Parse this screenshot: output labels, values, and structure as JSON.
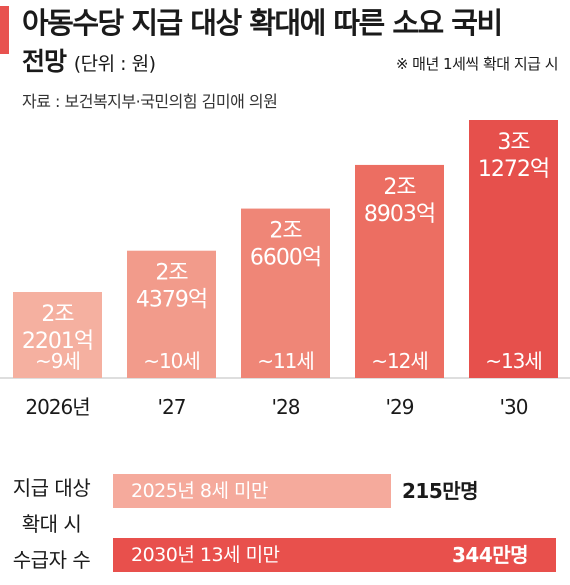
{
  "header": {
    "title": "아동수당 지급 대상 확대에 따른 소요 국비",
    "title2": "전망",
    "unit": "(단위 : 원)",
    "note": "※ 매년 1세씩 확대 지급 시",
    "source": "자료 : 보건복지부·국민의힘 김미애 의원"
  },
  "colors": {
    "accent": "#e8524f",
    "bars": [
      "#f5b0a0",
      "#f29b8b",
      "#ef8677",
      "#ec6e62",
      "#e6504c"
    ],
    "row1": "#f5aa9c",
    "row2": "#e8504c"
  },
  "chart_data": {
    "type": "bar",
    "categories": [
      "2026년",
      "'27",
      "'28",
      "'29",
      "'30"
    ],
    "values": [
      22201,
      24379,
      26600,
      28903,
      31272
    ],
    "value_labels": [
      [
        "2조",
        "2201억"
      ],
      [
        "2조",
        "4379억"
      ],
      [
        "2조",
        "6600억"
      ],
      [
        "2조",
        "8903억"
      ],
      [
        "3조",
        "1272억"
      ]
    ],
    "age_labels": [
      "~9세",
      "~10세",
      "~11세",
      "~12세",
      "~13세"
    ],
    "unit": "억원"
  },
  "recipients": {
    "row_labels": [
      "지급 대상",
      "확대 시",
      "수급자 수"
    ],
    "rows": [
      {
        "label": "2025년 8세 미만",
        "count": "215",
        "count_suffix": "만명"
      },
      {
        "label": "2030년 13세 미만",
        "count": "344",
        "count_suffix": "만명"
      }
    ]
  }
}
